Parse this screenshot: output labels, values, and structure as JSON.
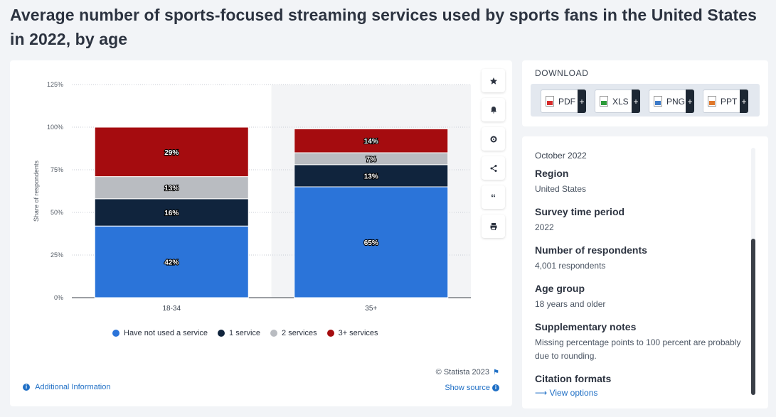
{
  "title": "Average number of sports-focused streaming services used by sports fans in the United States in 2022, by age",
  "chart_data": {
    "type": "bar",
    "stacked": true,
    "categories": [
      "18-34",
      "35+"
    ],
    "series": [
      {
        "name": "Have not used a service",
        "values": [
          42,
          65
        ],
        "labels": [
          "42%",
          "65%"
        ],
        "color": "#2b74d9"
      },
      {
        "name": "1 service",
        "values": [
          16,
          13
        ],
        "labels": [
          "16%",
          "13%"
        ],
        "color": "#10243d"
      },
      {
        "name": "2 services",
        "values": [
          13,
          7
        ],
        "labels": [
          "13%",
          "7%"
        ],
        "color": "#b9bcc1"
      },
      {
        "name": "3+ services",
        "values": [
          29,
          14
        ],
        "labels": [
          "29%",
          "14%"
        ],
        "color": "#a50c0f"
      }
    ],
    "ylabel": "Share of respondents",
    "yticks": [
      "0%",
      "25%",
      "50%",
      "75%",
      "100%",
      "125%"
    ],
    "ylim": [
      0,
      125
    ],
    "grid": true,
    "legend": "bottom"
  },
  "tools": [
    "star-icon",
    "bell-icon",
    "gear-icon",
    "share-icon",
    "quote-icon",
    "print-icon"
  ],
  "credit": "© Statista 2023",
  "show_source": "Show source",
  "additional_info": "Additional Information",
  "download": {
    "title": "DOWNLOAD",
    "buttons": [
      {
        "label": "PDF",
        "color": "#d62b2b"
      },
      {
        "label": "XLS",
        "color": "#2e9b3a"
      },
      {
        "label": "PNG",
        "color": "#3d7bc8"
      },
      {
        "label": "PPT",
        "color": "#e0782b"
      }
    ]
  },
  "meta": {
    "date": "October 2022",
    "items": [
      {
        "label": "Region",
        "value": "United States"
      },
      {
        "label": "Survey time period",
        "value": "2022"
      },
      {
        "label": "Number of respondents",
        "value": "4,001 respondents"
      },
      {
        "label": "Age group",
        "value": "18 years and older"
      },
      {
        "label": "Supplementary notes",
        "value": "Missing percentage points to 100 percent are probably due to rounding."
      }
    ],
    "citation_label": "Citation formats",
    "view_options": "View options"
  }
}
